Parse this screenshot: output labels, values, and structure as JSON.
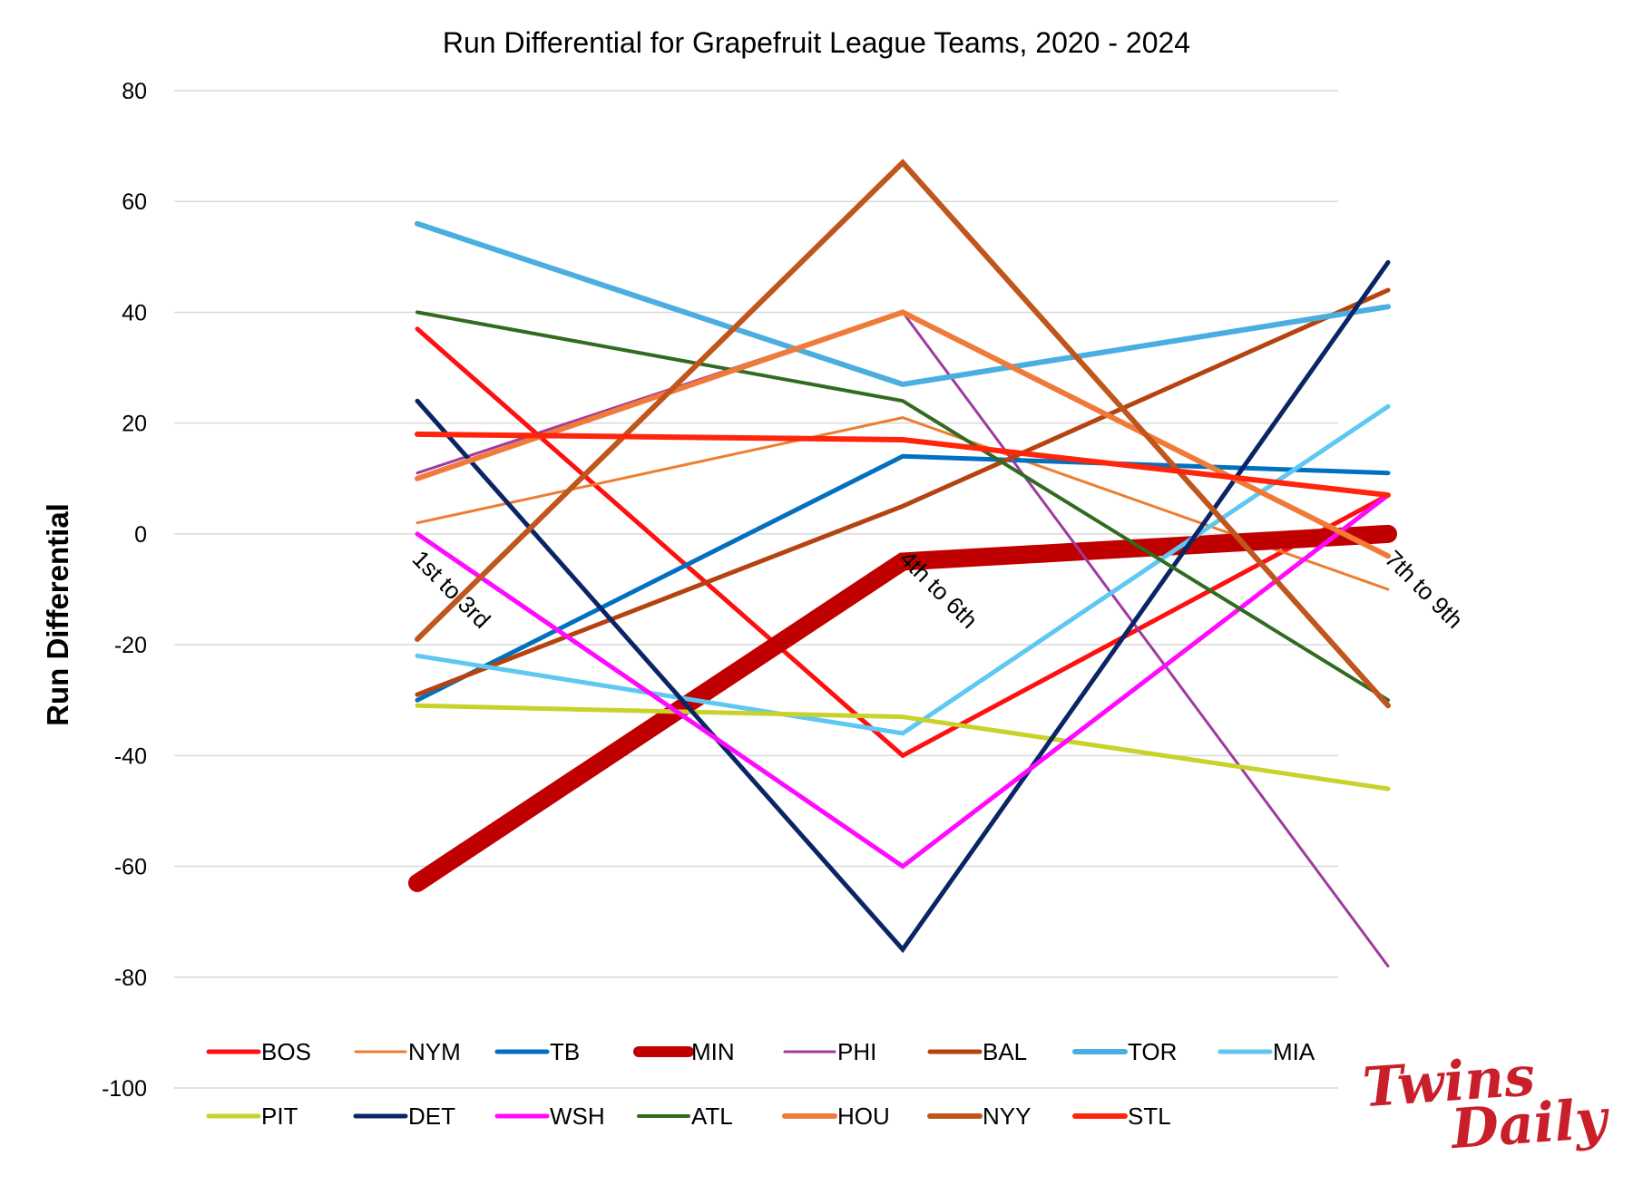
{
  "chart_data": {
    "type": "line",
    "title": "Run Differential for Grapefruit League Teams, 2020 - 2024",
    "xlabel": "",
    "ylabel": "Run Differential",
    "categories": [
      "1st to 3rd",
      "4th to 6th",
      "7th to 9th"
    ],
    "yticks": [
      80,
      60,
      40,
      20,
      0,
      -20,
      -40,
      -60,
      -80,
      -100
    ],
    "ylim": [
      -100,
      80
    ],
    "grid": true,
    "legend_position": "bottom",
    "series": [
      {
        "name": "BOS",
        "values": [
          37,
          -40,
          7
        ],
        "color": "#ff0f0f",
        "width": 5
      },
      {
        "name": "NYM",
        "values": [
          2,
          21,
          -10
        ],
        "color": "#ed7d31",
        "width": 3
      },
      {
        "name": "TB",
        "values": [
          -30,
          14,
          11
        ],
        "color": "#0070c0",
        "width": 5
      },
      {
        "name": "MIN",
        "values": [
          -63,
          -5,
          0
        ],
        "color": "#c00000",
        "width": 20
      },
      {
        "name": "PHI",
        "values": [
          11,
          40,
          -78
        ],
        "color": "#9e3aa0",
        "width": 3
      },
      {
        "name": "BAL",
        "values": [
          -29,
          5,
          44
        ],
        "color": "#b5430f",
        "width": 5
      },
      {
        "name": "TOR",
        "values": [
          56,
          27,
          41
        ],
        "color": "#4aaee0",
        "width": 6
      },
      {
        "name": "MIA",
        "values": [
          -22,
          -36,
          23
        ],
        "color": "#5ec8f2",
        "width": 5
      },
      {
        "name": "PIT",
        "values": [
          -31,
          -33,
          -46
        ],
        "color": "#c8d22a",
        "width": 5
      },
      {
        "name": "DET",
        "values": [
          24,
          -75,
          49
        ],
        "color": "#0a2565",
        "width": 5
      },
      {
        "name": "WSH",
        "values": [
          0,
          -60,
          7
        ],
        "color": "#ff0aff",
        "width": 5
      },
      {
        "name": "ATL",
        "values": [
          40,
          24,
          -30
        ],
        "color": "#306b1f",
        "width": 4
      },
      {
        "name": "HOU",
        "values": [
          10,
          40,
          -4
        ],
        "color": "#f07a3a",
        "width": 6
      },
      {
        "name": "NYY",
        "values": [
          -19,
          67,
          -31
        ],
        "color": "#c0561c",
        "width": 6
      },
      {
        "name": "STL",
        "values": [
          18,
          17,
          7
        ],
        "color": "#ff240a",
        "width": 6
      }
    ]
  },
  "logo": {
    "line1": "Twins",
    "line2": "Daily",
    "color": "#c81f2a"
  }
}
